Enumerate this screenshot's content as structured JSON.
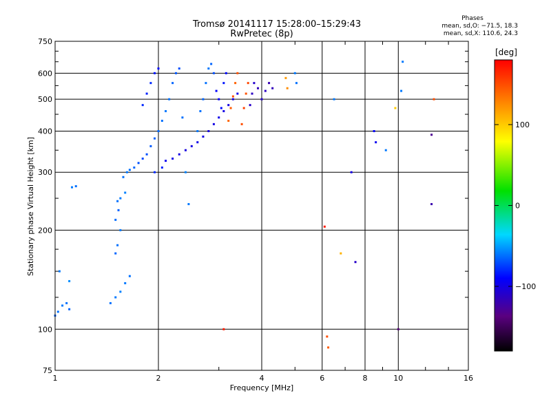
{
  "chart_data": {
    "type": "scatter",
    "title": "Tromsø 20141117 15:28:00–15:29:43",
    "subtitle": "RwPretec (8p)",
    "xlabel": "Frequency [MHz]",
    "ylabel": "Stationary phase Virtual Height [km]",
    "x_scale": "log",
    "y_scale": "log",
    "xlim": [
      1,
      16
    ],
    "ylim": [
      75,
      750
    ],
    "x_ticks": [
      "1",
      "2",
      "4",
      "6",
      "8",
      "10",
      "16"
    ],
    "y_ticks": [
      "75",
      "100",
      "200",
      "300",
      "400",
      "500",
      "600",
      "750"
    ],
    "grid": true,
    "phase_info": {
      "heading": "Phases",
      "line1": "mean, sd,O: −71.5, 18.3",
      "line2": "mean, sd,X: 110.6, 24.3"
    },
    "colorbar": {
      "label": "[deg]",
      "range": [
        -180,
        180
      ],
      "ticks": [
        "100",
        "0",
        "−100"
      ]
    },
    "series": [
      {
        "points": [
          [
            1.0,
            110,
            -65
          ],
          [
            1.02,
            113,
            -62
          ],
          [
            1.05,
            118,
            -60
          ],
          [
            1.08,
            120,
            -62
          ],
          [
            1.1,
            115,
            -65
          ],
          [
            1.03,
            150,
            -60
          ],
          [
            1.1,
            140,
            -55
          ],
          [
            1.12,
            270,
            -60
          ],
          [
            1.15,
            272,
            -62
          ],
          [
            1.45,
            120,
            -62
          ],
          [
            1.5,
            125,
            -60
          ],
          [
            1.55,
            130,
            -58
          ],
          [
            1.6,
            138,
            -60
          ],
          [
            1.65,
            145,
            -62
          ],
          [
            1.5,
            170,
            -65
          ],
          [
            1.52,
            180,
            -62
          ],
          [
            1.55,
            200,
            -60
          ],
          [
            1.5,
            215,
            -63
          ],
          [
            1.53,
            230,
            -66
          ],
          [
            1.52,
            245,
            -62
          ],
          [
            1.55,
            250,
            -60
          ],
          [
            1.6,
            260,
            -58
          ],
          [
            1.58,
            290,
            -62
          ],
          [
            1.62,
            300,
            -60
          ],
          [
            1.65,
            305,
            -62
          ],
          [
            1.7,
            310,
            -65
          ],
          [
            1.75,
            320,
            -70
          ],
          [
            1.8,
            330,
            -72
          ],
          [
            1.85,
            340,
            -70
          ],
          [
            1.9,
            360,
            -68
          ],
          [
            1.95,
            380,
            -66
          ],
          [
            2.0,
            400,
            -64
          ],
          [
            2.05,
            430,
            -62
          ],
          [
            2.1,
            460,
            -60
          ],
          [
            2.15,
            500,
            -62
          ],
          [
            2.2,
            560,
            -65
          ],
          [
            2.25,
            600,
            -68
          ],
          [
            2.3,
            620,
            -70
          ],
          [
            1.8,
            480,
            -80
          ],
          [
            1.85,
            520,
            -82
          ],
          [
            1.9,
            560,
            -80
          ],
          [
            1.95,
            600,
            -85
          ],
          [
            2.0,
            620,
            -88
          ],
          [
            2.35,
            440,
            -62
          ],
          [
            2.4,
            300,
            -58
          ],
          [
            2.45,
            240,
            -60
          ],
          [
            2.6,
            400,
            -60
          ],
          [
            2.65,
            460,
            -62
          ],
          [
            2.7,
            500,
            -65
          ],
          [
            2.75,
            560,
            -62
          ],
          [
            2.8,
            620,
            -60
          ],
          [
            2.85,
            640,
            -65
          ],
          [
            2.9,
            600,
            -70
          ],
          [
            2.1,
            325,
            -95
          ],
          [
            2.2,
            330,
            -98
          ],
          [
            2.3,
            340,
            -100
          ],
          [
            2.4,
            350,
            -102
          ],
          [
            2.5,
            360,
            -100
          ],
          [
            2.6,
            370,
            -98
          ],
          [
            2.7,
            385,
            -100
          ],
          [
            2.8,
            400,
            -102
          ],
          [
            2.9,
            420,
            -100
          ],
          [
            3.0,
            440,
            -98
          ],
          [
            3.1,
            460,
            -100
          ],
          [
            3.2,
            480,
            -102
          ],
          [
            3.3,
            500,
            -100
          ],
          [
            3.4,
            520,
            -98
          ],
          [
            2.95,
            530,
            -90
          ],
          [
            3.0,
            500,
            -92
          ],
          [
            3.05,
            470,
            -88
          ],
          [
            3.1,
            560,
            -85
          ],
          [
            3.15,
            600,
            -88
          ],
          [
            3.2,
            430,
            140
          ],
          [
            3.25,
            470,
            145
          ],
          [
            3.3,
            510,
            150
          ],
          [
            3.35,
            560,
            142
          ],
          [
            3.4,
            600,
            148
          ],
          [
            3.5,
            420,
            150
          ],
          [
            3.55,
            470,
            155
          ],
          [
            3.6,
            520,
            148
          ],
          [
            3.65,
            560,
            152
          ],
          [
            3.7,
            480,
            -110
          ],
          [
            3.75,
            520,
            -112
          ],
          [
            3.8,
            560,
            -108
          ],
          [
            3.9,
            540,
            -115
          ],
          [
            4.0,
            500,
            -110
          ],
          [
            4.1,
            530,
            -112
          ],
          [
            4.2,
            560,
            -118
          ],
          [
            4.3,
            540,
            -115
          ],
          [
            4.7,
            580,
            120
          ],
          [
            4.75,
            540,
            125
          ],
          [
            5.0,
            600,
            -60
          ],
          [
            5.05,
            560,
            -62
          ],
          [
            3.1,
            100,
            170
          ],
          [
            6.1,
            205,
            170
          ],
          [
            6.2,
            95,
            150
          ],
          [
            6.25,
            88,
            145
          ],
          [
            6.5,
            500,
            -60
          ],
          [
            6.8,
            170,
            110
          ],
          [
            7.3,
            300,
            -100
          ],
          [
            7.5,
            160,
            -110
          ],
          [
            8.5,
            400,
            -90
          ],
          [
            8.6,
            370,
            -95
          ],
          [
            9.2,
            350,
            -60
          ],
          [
            9.8,
            470,
            100
          ],
          [
            10.0,
            100,
            -140
          ],
          [
            10.2,
            530,
            -60
          ],
          [
            12.5,
            240,
            -120
          ],
          [
            12.5,
            390,
            -130
          ],
          [
            12.7,
            500,
            150
          ],
          [
            10.3,
            650,
            -60
          ],
          [
            1.95,
            300,
            -80
          ],
          [
            2.05,
            310,
            -82
          ]
        ]
      }
    ]
  }
}
